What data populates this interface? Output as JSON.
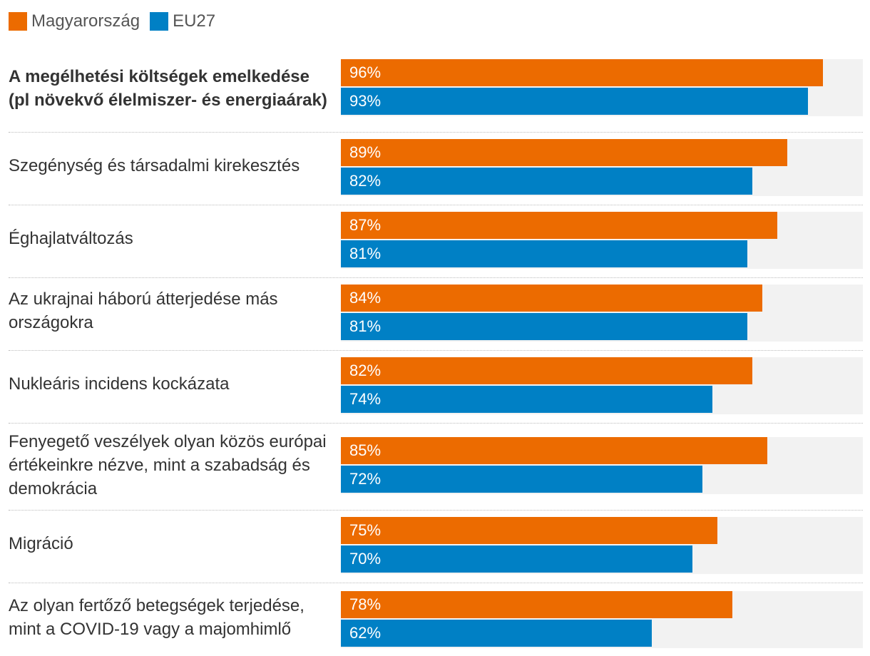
{
  "chart_data": {
    "type": "bar",
    "orientation": "horizontal",
    "xlim": [
      0,
      104
    ],
    "legend_position": "top-left",
    "series": [
      {
        "name": "Magyarország",
        "color": "#ec6b00",
        "values": [
          96,
          89,
          87,
          84,
          82,
          85,
          75,
          78
        ]
      },
      {
        "name": "EU27",
        "color": "#0080c5",
        "values": [
          93,
          82,
          81,
          81,
          74,
          72,
          70,
          62
        ]
      }
    ],
    "categories": [
      "A megélhetési költségek emelkedése (pl növekvő élelmiszer- és energiaárak)",
      "Szegénység és társadalmi kirekesztés",
      "Éghajlatváltozás",
      "Az ukrajnai háború átterjedése más országokra",
      "Nukleáris incidens kockázata",
      "Fenyegető veszélyek olyan közös európai értékeinkre nézve, mint a szabadság és demokrácia",
      "Migráció",
      "Az olyan fertőző betegségek terjedése, mint a COVID-19 vagy a majomhimlő"
    ],
    "value_suffix": "%"
  }
}
